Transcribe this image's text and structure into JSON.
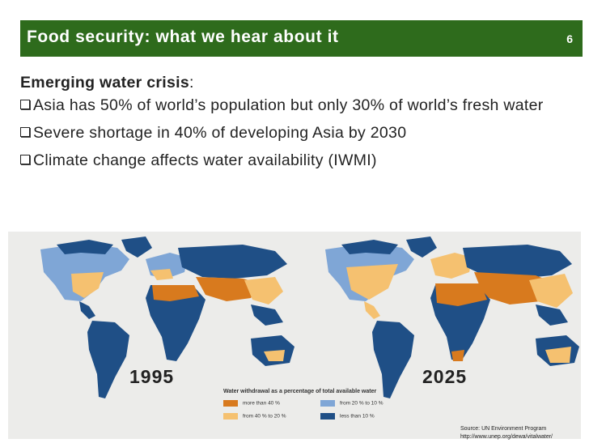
{
  "header": {
    "title": "Food security: what we hear about it",
    "slide_number": "6"
  },
  "content": {
    "lead": "Emerging water crisis",
    "lead_suffix": ":",
    "bullets": [
      "Asia has 50% of world’s population but only 30% of world’s fresh water",
      "Severe shortage in 40% of developing Asia by 2030",
      "Climate change affects water availability (IWMI)"
    ]
  },
  "maps": {
    "year_left": "1995",
    "year_right": "2025",
    "legend_title": "Water withdrawal as a percentage of total available water",
    "legend": [
      {
        "label": "more than 40 %",
        "color": "#d87a1e"
      },
      {
        "label": "from 40 % to 20 %",
        "color": "#f5c170"
      },
      {
        "label": "from 20 % to 10 %",
        "color": "#7fa6d6"
      },
      {
        "label": "less than 10 %",
        "color": "#1f4f86"
      }
    ]
  },
  "source": {
    "line1": "Source: UN Environment Program",
    "line2": "http://www.unep.org/dewa/vitalwater/"
  }
}
